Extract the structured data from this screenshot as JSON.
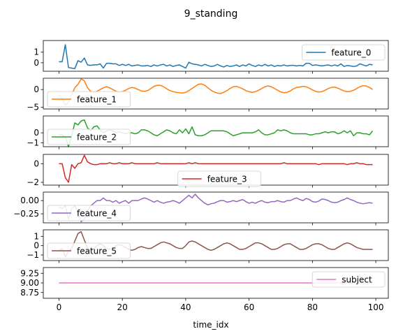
{
  "figure_title": "9_standing",
  "xlabel": "time_idx",
  "chart_data": [
    {
      "type": "line",
      "title": "9_standing",
      "series": [
        {
          "name": "feature_0",
          "color": "#1f77b4",
          "values": [
            0.1,
            0.1,
            1.7,
            -0.45,
            -0.5,
            -0.55,
            0.2,
            0.05,
            0.45,
            -0.2,
            -0.25,
            -0.2,
            -0.2,
            -0.1,
            -0.5,
            -0.05,
            -0.05,
            -0.1,
            -0.1,
            -0.25,
            -0.15,
            -0.25,
            -0.15,
            -0.3,
            -0.25,
            -0.2,
            -0.3,
            -0.3,
            -0.25,
            -0.35,
            -0.2,
            -0.3,
            -0.2,
            -0.15,
            -0.3,
            -0.2,
            -0.35,
            -0.25,
            -0.2,
            -0.35,
            -0.5,
            0.05,
            -0.1,
            -0.15,
            -0.2,
            -0.3,
            -0.15,
            -0.25,
            -0.35,
            -0.3,
            -0.15,
            -0.3,
            -0.4,
            -0.25,
            -0.35,
            -0.3,
            -0.2,
            -0.35,
            -0.2,
            -0.3,
            -0.1,
            -0.25,
            -0.35,
            -0.2,
            -0.3,
            -0.15,
            -0.3,
            -0.2,
            -0.35,
            -0.25,
            -0.3,
            -0.2,
            -0.3,
            -0.25,
            -0.25,
            -0.3,
            -0.25,
            -0.3,
            -0.05,
            -0.05,
            -0.25,
            -0.2,
            -0.25,
            -0.3,
            -0.25,
            -0.2,
            -0.3,
            -0.2,
            -0.3,
            -0.1,
            -0.35,
            -0.25,
            -0.3,
            -0.35,
            -0.3,
            -0.1,
            -0.2,
            -0.3,
            -0.15,
            -0.2
          ]
        }
      ],
      "ylim": [
        -0.8,
        2.1
      ],
      "yticks": [
        0,
        1
      ],
      "legend": "right"
    },
    {
      "type": "line",
      "series": [
        {
          "name": "feature_1",
          "color": "#ff7f0e",
          "values": [
            -1.5,
            -2.5,
            -4.5,
            -3.5,
            -1.5,
            0.5,
            1.5,
            3.0,
            2.5,
            0.5,
            -0.5,
            -0.8,
            -0.5,
            0.0,
            0.5,
            0.8,
            0.5,
            0.0,
            -0.5,
            -0.8,
            -0.6,
            -0.2,
            0.3,
            0.6,
            0.4,
            0.0,
            -0.4,
            -0.5,
            -0.3,
            0.3,
            0.9,
            1.2,
            1.2,
            0.8,
            0.2,
            -0.3,
            -0.6,
            -0.8,
            -0.9,
            -1.0,
            -0.8,
            -0.3,
            0.3,
            0.9,
            1.5,
            1.6,
            1.2,
            0.5,
            -0.2,
            -0.7,
            -1.0,
            -1.1,
            -0.8,
            -0.3,
            0.3,
            0.8,
            0.9,
            0.6,
            0.2,
            -0.3,
            -0.6,
            -0.8,
            -0.6,
            -0.2,
            0.3,
            0.8,
            1.0,
            0.8,
            0.3,
            -0.2,
            -0.7,
            -0.9,
            -0.8,
            -0.4,
            0.2,
            0.6,
            0.7,
            0.9,
            0.8,
            0.4,
            -0.1,
            -0.5,
            -0.7,
            -0.6,
            -0.2,
            0.3,
            0.6,
            0.7,
            0.4,
            0.0,
            -0.4,
            -0.6,
            -0.5,
            -0.2,
            0.3,
            0.8,
            1.1,
            1.0,
            0.6,
            0.0
          ]
        }
      ],
      "ylim": [
        -5.5,
        3.2
      ],
      "yticks": [
        -5,
        0
      ],
      "legend": "left"
    },
    {
      "type": "line",
      "series": [
        {
          "name": "feature_2",
          "color": "#2ca02c",
          "values": [
            -0.2,
            -0.2,
            -0.4,
            -1.4,
            -0.3,
            1.0,
            0.8,
            1.2,
            1.3,
            0.5,
            0.2,
            0.6,
            0.7,
            0.3,
            0.0,
            0.2,
            0.3,
            0.2,
            0.0,
            0.1,
            0.0,
            -0.1,
            0.0,
            0.0,
            -0.1,
            0.0,
            0.3,
            0.3,
            0.2,
            0.0,
            -0.2,
            -0.3,
            -0.1,
            0.1,
            0.3,
            0.2,
            0.0,
            -0.1,
            0.3,
            0.0,
            0.4,
            -0.1,
            0.6,
            -0.2,
            -0.3,
            -0.3,
            -0.2,
            0.0,
            0.2,
            0.2,
            0.2,
            0.2,
            0.2,
            0.1,
            -0.1,
            -0.3,
            -0.2,
            -0.1,
            0.0,
            0.0,
            0.0,
            0.0,
            0.1,
            0.3,
            0.0,
            -0.2,
            -0.2,
            -0.1,
            0.0,
            0.3,
            0.2,
            0.3,
            0.2,
            0.0,
            -0.1,
            -0.1,
            -0.1,
            -0.1,
            -0.1,
            -0.2,
            -0.2,
            -0.1,
            -0.1,
            0.0,
            0.1,
            0.0,
            0.1,
            0.1,
            -0.1,
            0.0,
            0.2,
            0.0,
            0.2,
            -0.3,
            0.0,
            0.0,
            -0.1,
            -0.1,
            -0.2,
            0.2
          ]
        }
      ],
      "ylim": [
        -1.4,
        1.7
      ],
      "yticks": [
        -1,
        0
      ],
      "legend": "left"
    },
    {
      "type": "line",
      "series": [
        {
          "name": "feature_3",
          "color": "#d62728",
          "values": [
            0.0,
            0.0,
            -1.5,
            -2.0,
            -0.1,
            -0.5,
            0.0,
            0.1,
            0.9,
            0.2,
            0.0,
            -0.1,
            -0.1,
            0.0,
            0.0,
            0.0,
            0.1,
            0.0,
            0.0,
            0.1,
            0.0,
            0.0,
            0.0,
            0.1,
            0.0,
            0.0,
            0.0,
            0.0,
            0.0,
            0.0,
            0.0,
            0.1,
            0.0,
            0.0,
            0.0,
            0.0,
            0.0,
            0.0,
            0.0,
            0.0,
            0.0,
            0.1,
            0.0,
            0.1,
            0.0,
            0.0,
            0.0,
            0.0,
            0.0,
            0.0,
            0.0,
            0.0,
            0.0,
            0.0,
            0.0,
            0.0,
            0.0,
            0.0,
            0.0,
            0.0,
            0.0,
            0.0,
            0.0,
            0.0,
            0.0,
            0.0,
            0.0,
            0.0,
            0.0,
            0.0,
            0.0,
            0.1,
            0.0,
            0.0,
            0.0,
            0.0,
            0.0,
            0.0,
            0.0,
            0.0,
            0.0,
            0.0,
            -0.1,
            0.0,
            0.0,
            0.0,
            0.0,
            0.0,
            0.0,
            0.0,
            0.0,
            -0.1,
            0.0,
            0.0,
            0.1,
            0.0,
            0.0,
            -0.1,
            -0.1,
            -0.1
          ]
        }
      ],
      "ylim": [
        -2.3,
        1.0
      ],
      "yticks": [
        -2,
        0
      ],
      "legend": "center"
    },
    {
      "type": "line",
      "series": [
        {
          "name": "feature_4",
          "color": "#9467bd",
          "values": [
            -0.12,
            -0.15,
            -0.1,
            -0.35,
            -0.15,
            -0.1,
            -0.2,
            -0.4,
            -0.35,
            -0.2,
            -0.1,
            -0.05,
            0.0,
            0.0,
            0.05,
            0.0,
            0.0,
            -0.03,
            0.0,
            -0.05,
            -0.02,
            0.0,
            -0.05,
            0.0,
            0.0,
            0.0,
            0.03,
            0.05,
            0.03,
            0.0,
            -0.03,
            0.0,
            -0.03,
            -0.05,
            -0.03,
            -0.02,
            0.0,
            -0.02,
            -0.05,
            0.0,
            0.05,
            0.1,
            0.05,
            0.12,
            0.05,
            0.0,
            -0.05,
            -0.08,
            -0.06,
            -0.05,
            -0.02,
            0.0,
            0.0,
            -0.03,
            -0.02,
            0.0,
            -0.02,
            0.0,
            0.02,
            -0.02,
            -0.05,
            -0.03,
            -0.05,
            -0.02,
            0.0,
            -0.03,
            -0.04,
            -0.02,
            -0.02,
            0.0,
            -0.02,
            -0.03,
            0.0,
            0.0,
            0.03,
            0.05,
            0.02,
            0.0,
            0.04,
            0.02,
            -0.02,
            -0.03,
            -0.01,
            0.03,
            0.02,
            0.0,
            -0.03,
            -0.04,
            -0.03,
            0.0,
            0.02,
            0.05,
            0.02,
            0.0,
            -0.03,
            -0.05,
            -0.06,
            -0.05,
            -0.04,
            -0.05
          ]
        }
      ],
      "ylim": [
        -0.42,
        0.16
      ],
      "yticks": [
        -0.25,
        0.0
      ],
      "legend": "left"
    },
    {
      "type": "line",
      "series": [
        {
          "name": "feature_5",
          "color": "#8c564b",
          "values": [
            -0.5,
            -0.3,
            -1.2,
            -0.6,
            -0.3,
            0.5,
            1.3,
            1.5,
            0.6,
            -0.2,
            -0.6,
            -0.3,
            0.0,
            0.2,
            0.0,
            -0.3,
            -0.4,
            -0.3,
            0.0,
            0.1,
            0.0,
            -0.2,
            -0.4,
            -0.5,
            -0.4,
            -0.2,
            -0.1,
            -0.2,
            -0.3,
            -0.3,
            -0.1,
            0.1,
            0.3,
            0.4,
            0.3,
            0.2,
            0.0,
            -0.2,
            -0.3,
            -0.3,
            0.0,
            0.4,
            0.5,
            0.4,
            0.2,
            0.0,
            -0.2,
            -0.4,
            -0.5,
            -0.4,
            -0.2,
            0.0,
            0.2,
            0.3,
            0.2,
            0.0,
            -0.2,
            -0.4,
            -0.4,
            -0.3,
            -0.1,
            0.1,
            0.3,
            0.3,
            0.2,
            0.0,
            -0.2,
            -0.4,
            -0.4,
            -0.3,
            -0.1,
            0.1,
            0.2,
            0.2,
            0.0,
            -0.2,
            -0.4,
            -0.4,
            -0.3,
            -0.1,
            0.1,
            0.2,
            0.2,
            0.1,
            -0.1,
            -0.3,
            -0.4,
            -0.4,
            -0.2,
            0.0,
            0.2,
            0.3,
            0.2,
            0.0,
            -0.2,
            -0.3,
            -0.4,
            -0.4,
            -0.4,
            -0.4
          ]
        }
      ],
      "ylim": [
        -1.6,
        1.7
      ],
      "yticks": [
        -1,
        0,
        1
      ],
      "legend": "left"
    },
    {
      "type": "line",
      "series": [
        {
          "name": "subject",
          "color": "#e377c2",
          "values": [
            9,
            9,
            9,
            9,
            9,
            9,
            9,
            9,
            9,
            9,
            9,
            9,
            9,
            9,
            9,
            9,
            9,
            9,
            9,
            9,
            9,
            9,
            9,
            9,
            9,
            9,
            9,
            9,
            9,
            9,
            9,
            9,
            9,
            9,
            9,
            9,
            9,
            9,
            9,
            9,
            9,
            9,
            9,
            9,
            9,
            9,
            9,
            9,
            9,
            9,
            9,
            9,
            9,
            9,
            9,
            9,
            9,
            9,
            9,
            9,
            9,
            9,
            9,
            9,
            9,
            9,
            9,
            9,
            9,
            9,
            9,
            9,
            9,
            9,
            9,
            9,
            9,
            9,
            9,
            9,
            9,
            9,
            9,
            9,
            9,
            9,
            9,
            9,
            9,
            9,
            9,
            9,
            9,
            9,
            9,
            9,
            9,
            9,
            9,
            9
          ]
        }
      ],
      "ylim": [
        8.6,
        9.4
      ],
      "yticks": [
        8.75,
        9.0,
        9.25
      ],
      "legend": "right"
    }
  ],
  "xlim": [
    -4.95,
    103.95
  ],
  "xticks": [
    0,
    20,
    40,
    60,
    80,
    100
  ]
}
